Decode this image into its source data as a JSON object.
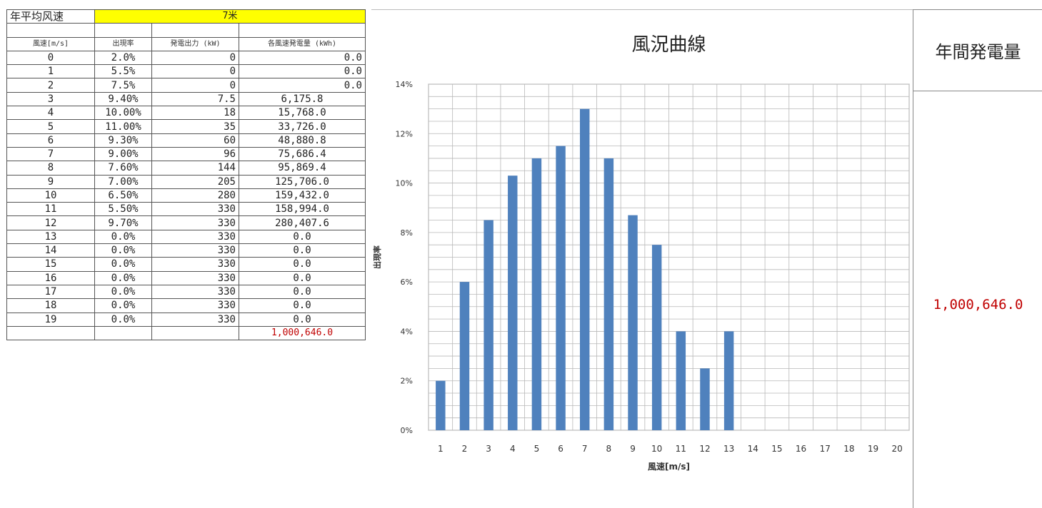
{
  "table": {
    "title_label": "年平均风速",
    "title_value": "7米",
    "headers": [
      "風速[m/s]",
      "出現率",
      "発電出力 (kW)",
      "各風速発電量 (kWh)"
    ],
    "rows": [
      [
        "0",
        "2.0%",
        "0",
        "0.0"
      ],
      [
        "1",
        "5.5%",
        "0",
        "0.0"
      ],
      [
        "2",
        "7.5%",
        "0",
        "0.0"
      ],
      [
        "3",
        "9.40%",
        "7.5",
        "6,175.8"
      ],
      [
        "4",
        "10.00%",
        "18",
        "15,768.0"
      ],
      [
        "5",
        "11.00%",
        "35",
        "33,726.0"
      ],
      [
        "6",
        "9.30%",
        "60",
        "48,880.8"
      ],
      [
        "7",
        "9.00%",
        "96",
        "75,686.4"
      ],
      [
        "8",
        "7.60%",
        "144",
        "95,869.4"
      ],
      [
        "9",
        "7.00%",
        "205",
        "125,706.0"
      ],
      [
        "10",
        "6.50%",
        "280",
        "159,432.0"
      ],
      [
        "11",
        "5.50%",
        "330",
        "158,994.0"
      ],
      [
        "12",
        "9.70%",
        "330",
        "280,407.6"
      ],
      [
        "13",
        "0.0%",
        "330",
        "0.0"
      ],
      [
        "14",
        "0.0%",
        "330",
        "0.0"
      ],
      [
        "15",
        "0.0%",
        "330",
        "0.0"
      ],
      [
        "16",
        "0.0%",
        "330",
        "0.0"
      ],
      [
        "17",
        "0.0%",
        "330",
        "0.0"
      ],
      [
        "18",
        "0.0%",
        "330",
        "0.0"
      ],
      [
        "19",
        "0.0%",
        "330",
        "0.0"
      ]
    ],
    "total": "1,000,646.0"
  },
  "chart_data": {
    "type": "bar",
    "title": "風況曲線",
    "xlabel": "風速[m/s]",
    "ylabel": "出現率",
    "categories": [
      "1",
      "2",
      "3",
      "4",
      "5",
      "6",
      "7",
      "8",
      "9",
      "10",
      "11",
      "12",
      "13",
      "14",
      "15",
      "16",
      "17",
      "18",
      "19",
      "20"
    ],
    "values": [
      2,
      6,
      8.5,
      10.3,
      11,
      11.5,
      13,
      11,
      8.7,
      7.5,
      4,
      2.5,
      4,
      0,
      0,
      0,
      0,
      0,
      0,
      0
    ],
    "y_ticks": [
      "0%",
      "2%",
      "4%",
      "6%",
      "8%",
      "10%",
      "12%",
      "14%"
    ],
    "ylim": [
      0,
      14
    ],
    "grid": true,
    "bar_color": "#4f81bd"
  },
  "right_panel": {
    "title": "年間発電量",
    "value": "1,000,646.0"
  },
  "colors": {
    "highlight": "#ffff00",
    "total_text": "#c00000",
    "bar": "#4f81bd"
  }
}
